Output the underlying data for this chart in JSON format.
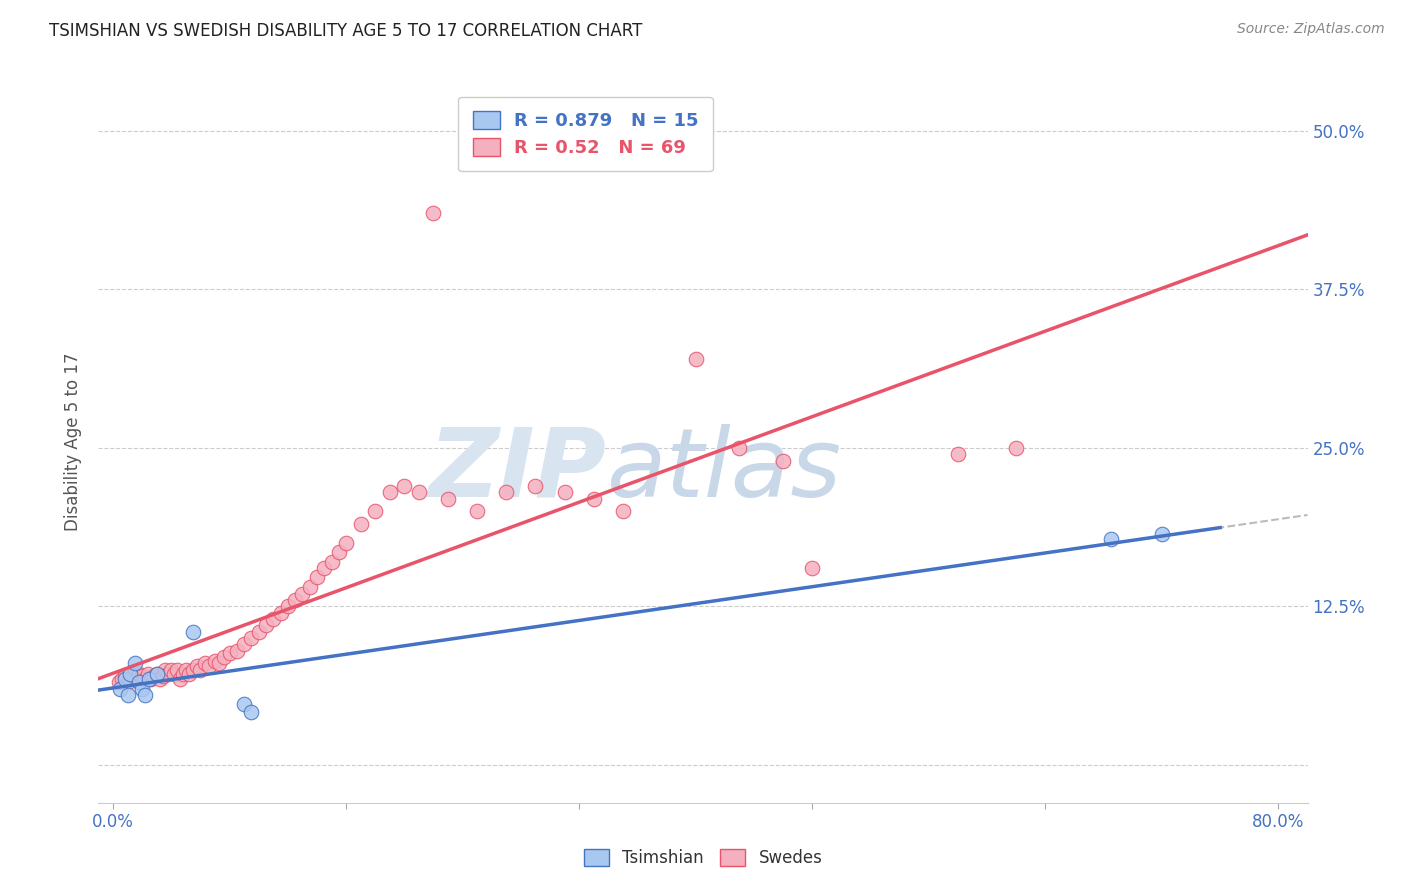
{
  "title": "TSIMSHIAN VS SWEDISH DISABILITY AGE 5 TO 17 CORRELATION CHART",
  "source": "Source: ZipAtlas.com",
  "ylabel": "Disability Age 5 to 17",
  "xmin": -0.01,
  "xmax": 0.82,
  "ymin": -0.03,
  "ymax": 0.54,
  "ytick_vals": [
    0.0,
    0.125,
    0.25,
    0.375,
    0.5
  ],
  "xtick_vals": [
    0.0,
    0.16,
    0.32,
    0.48,
    0.64,
    0.8
  ],
  "tsimshian_R": 0.879,
  "tsimshian_N": 15,
  "swedes_R": 0.52,
  "swedes_N": 69,
  "tsimshian_color": "#A8C8F0",
  "swedes_color": "#F5B0C0",
  "tsimshian_line_color": "#4472C4",
  "swedes_line_color": "#E8546A",
  "tsimshian_scatter_x": [
    0.005,
    0.008,
    0.01,
    0.012,
    0.015,
    0.018,
    0.02,
    0.022,
    0.025,
    0.03,
    0.055,
    0.09,
    0.095,
    0.685,
    0.72
  ],
  "tsimshian_scatter_y": [
    0.06,
    0.068,
    0.055,
    0.072,
    0.08,
    0.065,
    0.06,
    0.055,
    0.068,
    0.072,
    0.105,
    0.048,
    0.042,
    0.178,
    0.182
  ],
  "swedes_scatter_x": [
    0.004,
    0.006,
    0.008,
    0.01,
    0.012,
    0.014,
    0.016,
    0.018,
    0.02,
    0.022,
    0.024,
    0.026,
    0.028,
    0.03,
    0.032,
    0.034,
    0.036,
    0.038,
    0.04,
    0.042,
    0.044,
    0.046,
    0.048,
    0.05,
    0.052,
    0.055,
    0.058,
    0.06,
    0.063,
    0.066,
    0.07,
    0.073,
    0.076,
    0.08,
    0.085,
    0.09,
    0.095,
    0.1,
    0.105,
    0.11,
    0.115,
    0.12,
    0.125,
    0.13,
    0.135,
    0.14,
    0.145,
    0.15,
    0.155,
    0.16,
    0.17,
    0.18,
    0.19,
    0.2,
    0.21,
    0.22,
    0.23,
    0.25,
    0.27,
    0.29,
    0.31,
    0.33,
    0.35,
    0.4,
    0.43,
    0.46,
    0.48,
    0.58,
    0.62
  ],
  "swedes_scatter_y": [
    0.065,
    0.068,
    0.07,
    0.065,
    0.068,
    0.07,
    0.068,
    0.072,
    0.07,
    0.068,
    0.072,
    0.068,
    0.07,
    0.072,
    0.068,
    0.07,
    0.075,
    0.072,
    0.075,
    0.072,
    0.075,
    0.068,
    0.072,
    0.075,
    0.072,
    0.075,
    0.078,
    0.075,
    0.08,
    0.078,
    0.082,
    0.08,
    0.085,
    0.088,
    0.09,
    0.095,
    0.1,
    0.105,
    0.11,
    0.115,
    0.12,
    0.125,
    0.13,
    0.135,
    0.14,
    0.148,
    0.155,
    0.16,
    0.168,
    0.175,
    0.19,
    0.2,
    0.215,
    0.22,
    0.215,
    0.435,
    0.21,
    0.2,
    0.215,
    0.22,
    0.215,
    0.21,
    0.2,
    0.32,
    0.25,
    0.24,
    0.155,
    0.245,
    0.25
  ],
  "grid_color": "#CCCCCC",
  "bg_color": "#FFFFFF",
  "watermark_color": "#D8E4F0"
}
